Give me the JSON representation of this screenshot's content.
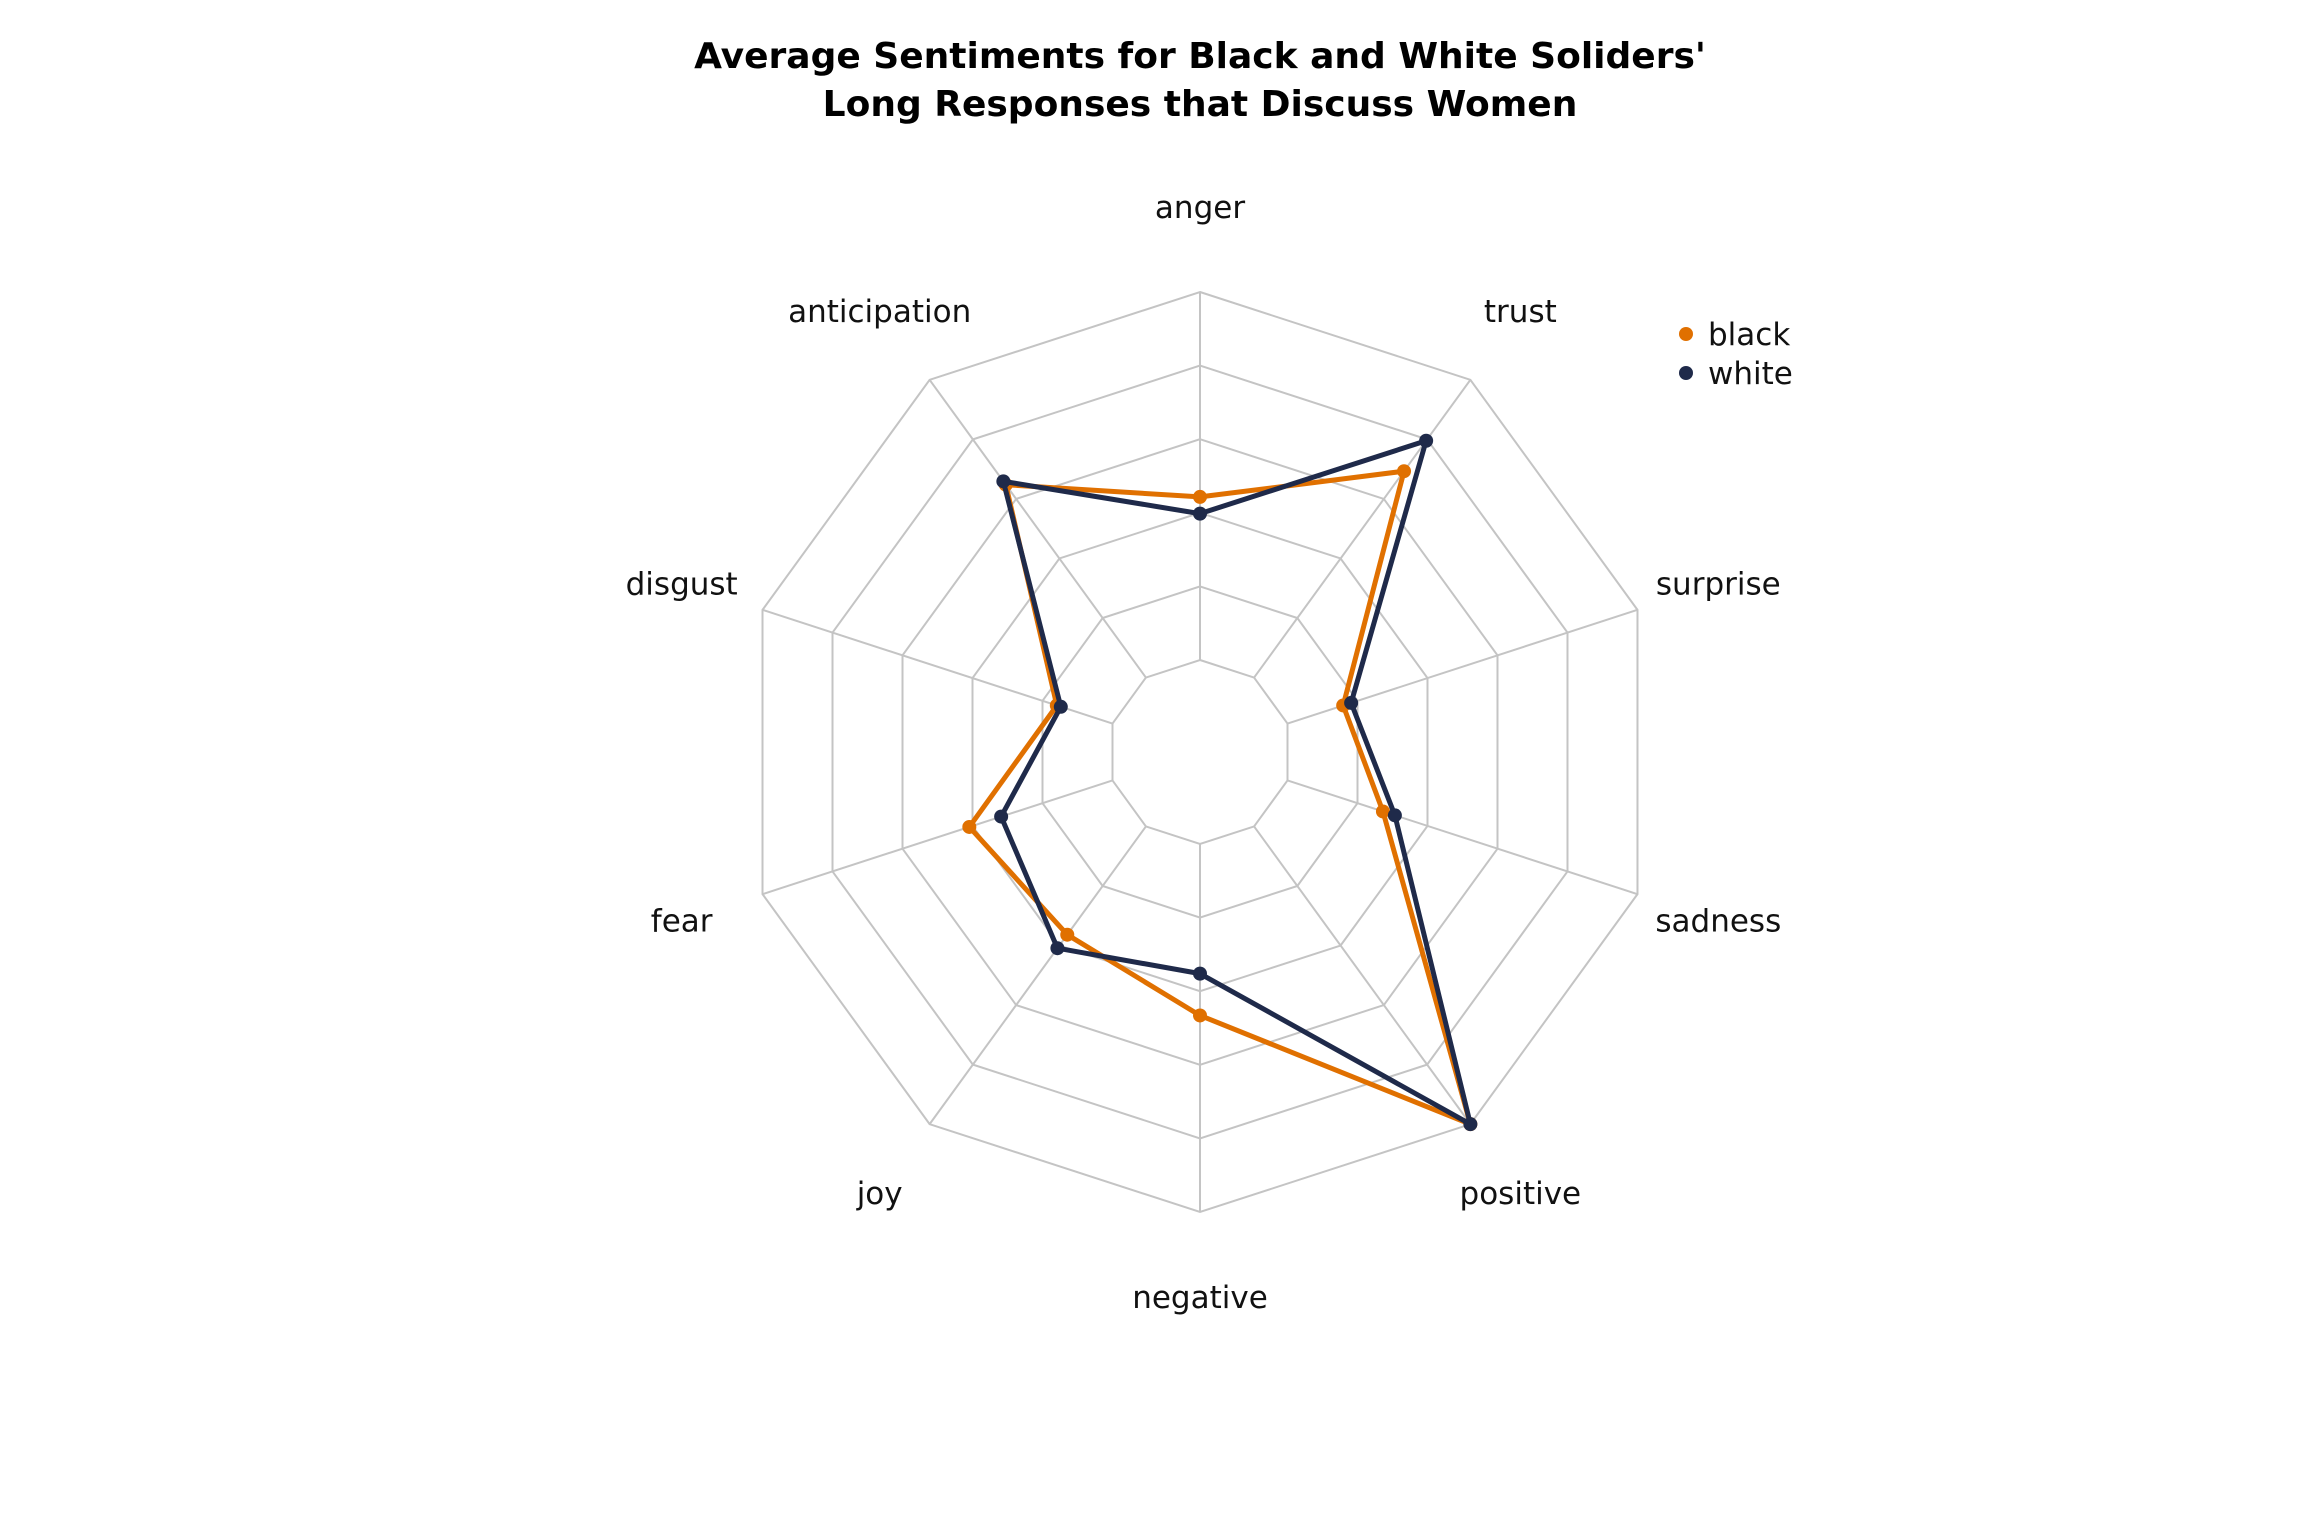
{
  "chart_data": {
    "type": "radar",
    "title_lines": [
      "Average Sentiments for Black and White Soliders'",
      "Long Responses that Discuss Women"
    ],
    "categories": [
      "anger",
      "trust",
      "surprise",
      "sadness",
      "positive",
      "negative",
      "joy",
      "fear",
      "disgust",
      "anticipation"
    ],
    "rmax": 0.088,
    "grid_levels": 5,
    "grid": true,
    "legend_position": "top-right",
    "series": [
      {
        "name": "black",
        "color": "#E07000",
        "values": [
          0.039,
          0.061,
          0.014,
          0.024,
          0.088,
          0.041,
          0.032,
          0.036,
          0.014,
          0.057
        ]
      },
      {
        "name": "white",
        "color": "#1F2A4A",
        "values": [
          0.035,
          0.07,
          0.016,
          0.027,
          0.088,
          0.031,
          0.036,
          0.028,
          0.013,
          0.058
        ]
      }
    ]
  }
}
